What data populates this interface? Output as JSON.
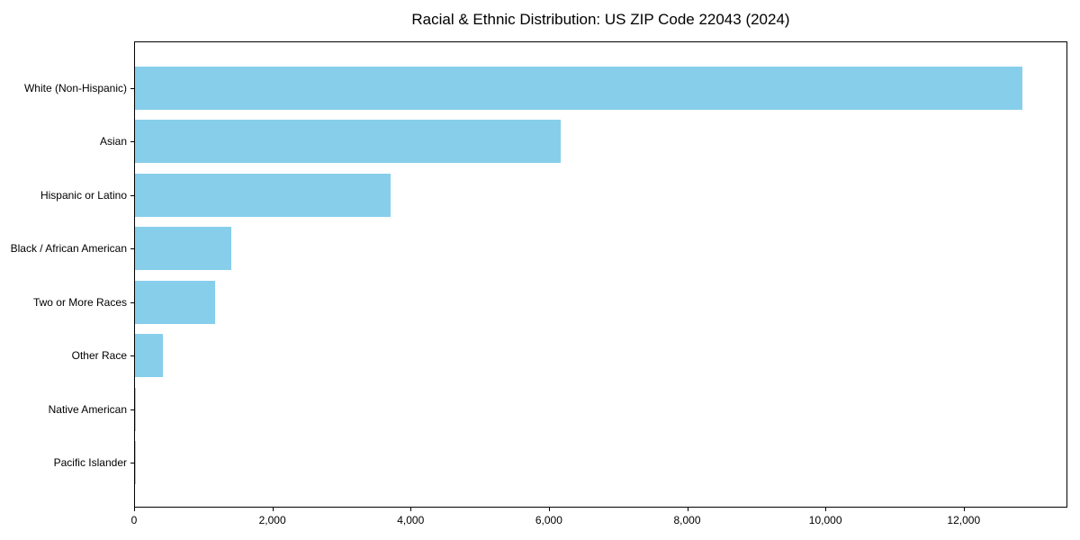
{
  "chart_data": {
    "type": "bar",
    "orientation": "horizontal",
    "title": "Racial & Ethnic Distribution: US ZIP Code 22043 (2024)",
    "xlabel": "",
    "ylabel": "",
    "categories": [
      "White (Non-Hispanic)",
      "Asian",
      "Hispanic or Latino",
      "Black / African American",
      "Two or More Races",
      "Other Race",
      "Native American",
      "Pacific Islander"
    ],
    "values": [
      12855,
      6175,
      3700,
      1390,
      1160,
      400,
      10,
      4
    ],
    "xlim": [
      0,
      13500
    ],
    "xticks": [
      0,
      2000,
      4000,
      6000,
      8000,
      10000,
      12000
    ],
    "xtick_labels": [
      "0",
      "2,000",
      "4,000",
      "6,000",
      "8,000",
      "10,000",
      "12,000"
    ],
    "bar_color": "#87CEEB",
    "frame_color": "#000000",
    "background_color": "#ffffff",
    "grid": false,
    "legend": null
  }
}
